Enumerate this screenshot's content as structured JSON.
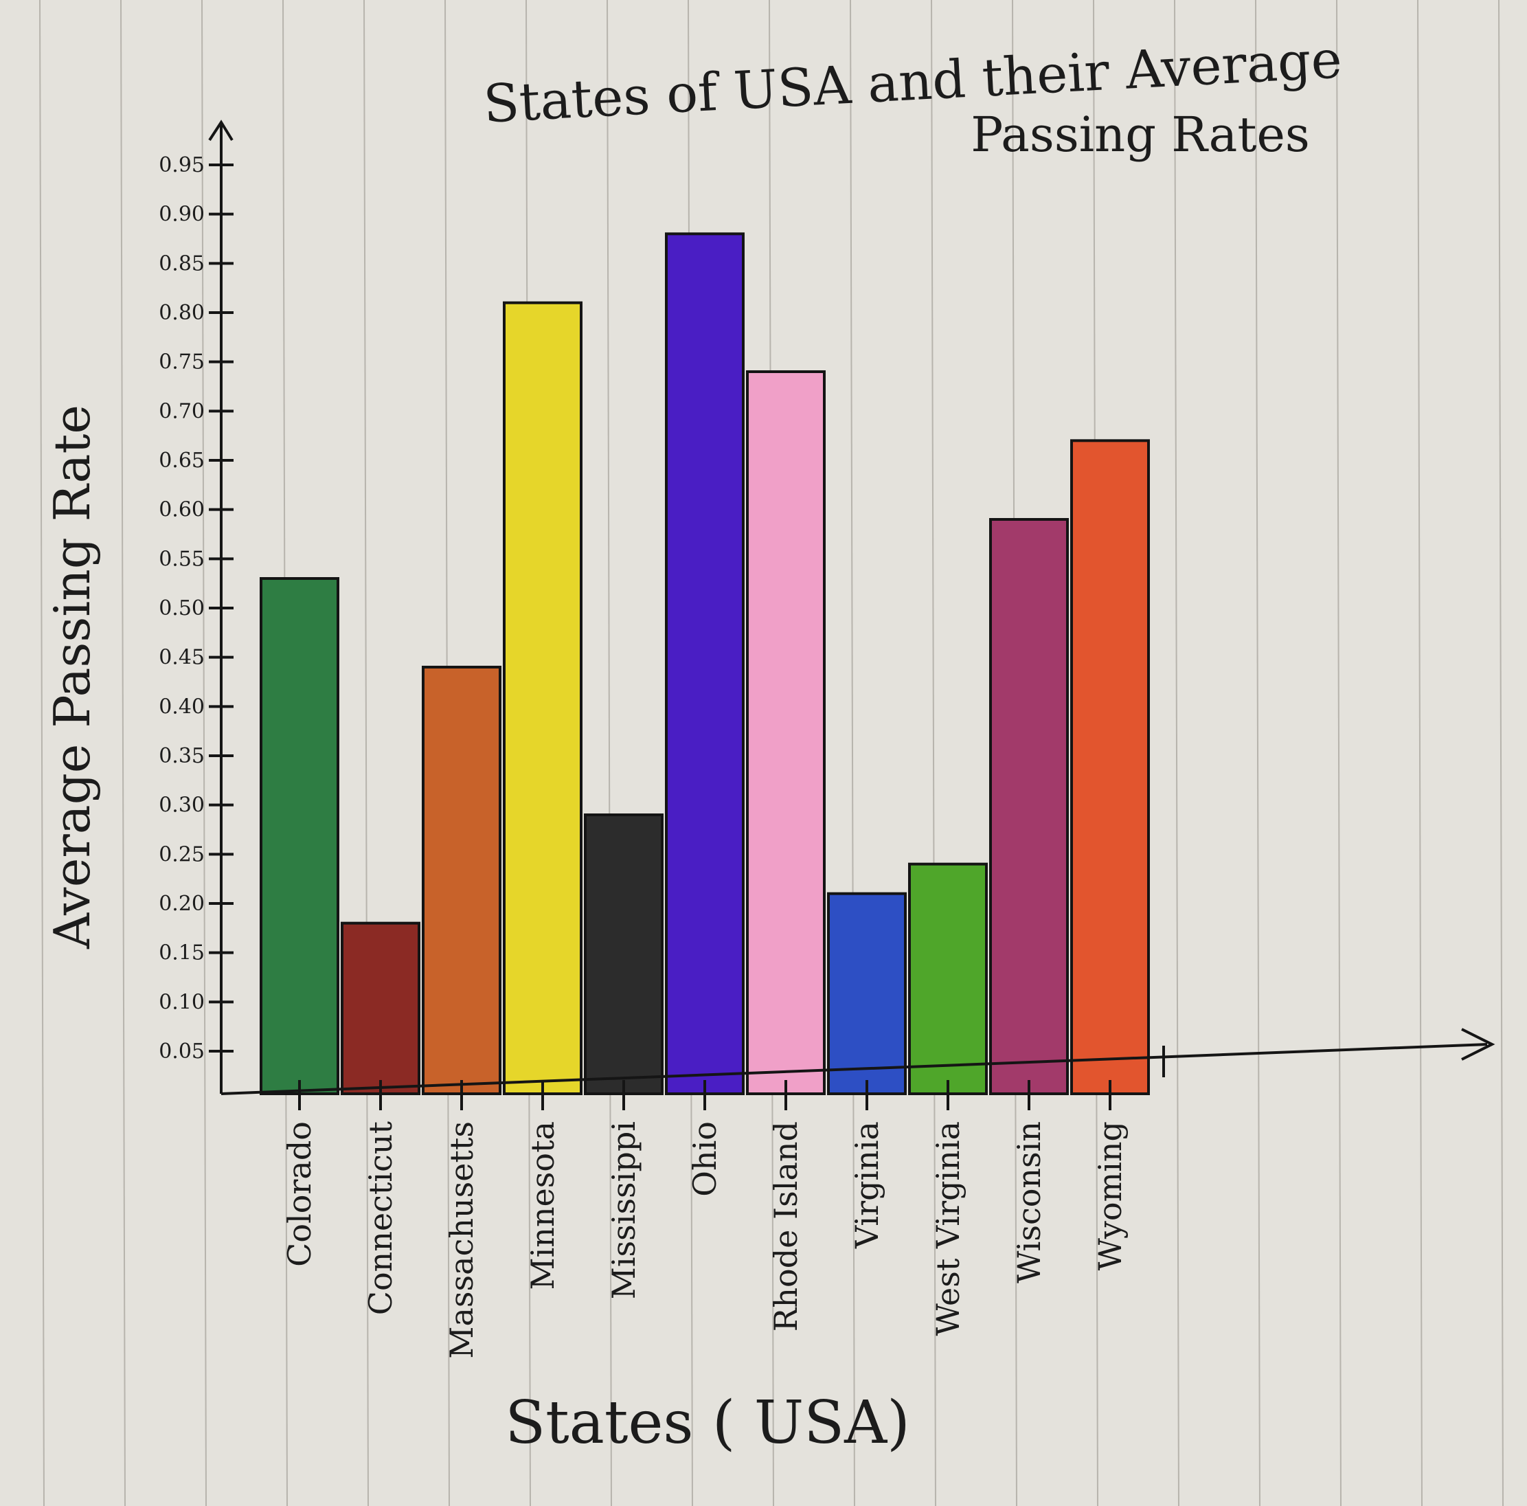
{
  "chart_data": {
    "type": "bar",
    "title_line1": "States of USA and their Average",
    "title_line2": "Passing Rates",
    "xlabel": "States ( USA)",
    "ylabel": "Average Passing Rate",
    "y_ticks": [
      "0.05",
      "0.10",
      "0.15",
      "0.20",
      "0.25",
      "0.30",
      "0.35",
      "0.40",
      "0.45",
      "0.50",
      "0.55",
      "0.60",
      "0.65",
      "0.70",
      "0.75",
      "0.80",
      "0.85",
      "0.90",
      "0.95"
    ],
    "ylim": [
      0,
      0.95
    ],
    "grid": false,
    "categories": [
      "Colorado",
      "Connecticut",
      "Massachusetts",
      "Minnesota",
      "Mississippi",
      "Ohio",
      "Rhode Island",
      "Virginia",
      "West Virginia",
      "Wisconsin",
      "Wyoming"
    ],
    "values": [
      0.53,
      0.18,
      0.44,
      0.81,
      0.29,
      0.88,
      0.74,
      0.21,
      0.24,
      0.59,
      0.67
    ],
    "colors": [
      "#2e7d43",
      "#8b2a24",
      "#c8622a",
      "#e6d62a",
      "#2c2c2c",
      "#4a1ec4",
      "#f0a0c8",
      "#2d4fc4",
      "#4fa62a",
      "#a23a6a",
      "#e2552e"
    ]
  }
}
